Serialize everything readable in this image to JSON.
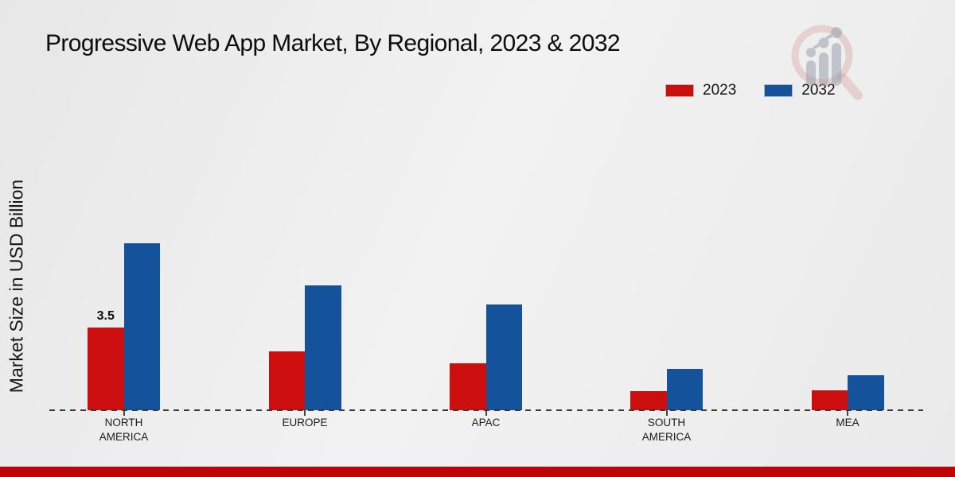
{
  "title": "Progressive Web App Market, By Regional, 2023 & 2032",
  "y_axis_label": "Market Size in USD Billion",
  "legend": {
    "items": [
      {
        "label": "2023",
        "color": "#cc0e0e"
      },
      {
        "label": "2032",
        "color": "#14539b"
      }
    ]
  },
  "colors": {
    "series_2023": "#cc0e0e",
    "series_2032": "#14539b",
    "footer_bar": "#c00404",
    "baseline": "#3b3b3b",
    "background": "#ededed"
  },
  "chart_data": {
    "type": "bar",
    "title": "Progressive Web App Market, By Regional, 2023 & 2032",
    "xlabel": "",
    "ylabel": "Market Size in USD Billion",
    "categories": [
      "NORTH AMERICA",
      "EUROPE",
      "APAC",
      "SOUTH AMERICA",
      "MEA"
    ],
    "series": [
      {
        "name": "2023",
        "color": "#cc0e0e",
        "values": [
          3.5,
          2.5,
          2.0,
          0.8,
          0.85
        ],
        "data_labels": [
          "3.5",
          "",
          "",
          "",
          ""
        ]
      },
      {
        "name": "2032",
        "color": "#14539b",
        "values": [
          7.1,
          5.3,
          4.5,
          1.75,
          1.5
        ],
        "data_labels": [
          "",
          "",
          "",
          "",
          ""
        ]
      }
    ],
    "ylim": [
      0,
      7.5
    ],
    "grid": false,
    "axis_style": "dashed-baseline-only",
    "legend_position": "top-right"
  },
  "watermark": {
    "name": "market-research-magnifier-logo"
  }
}
